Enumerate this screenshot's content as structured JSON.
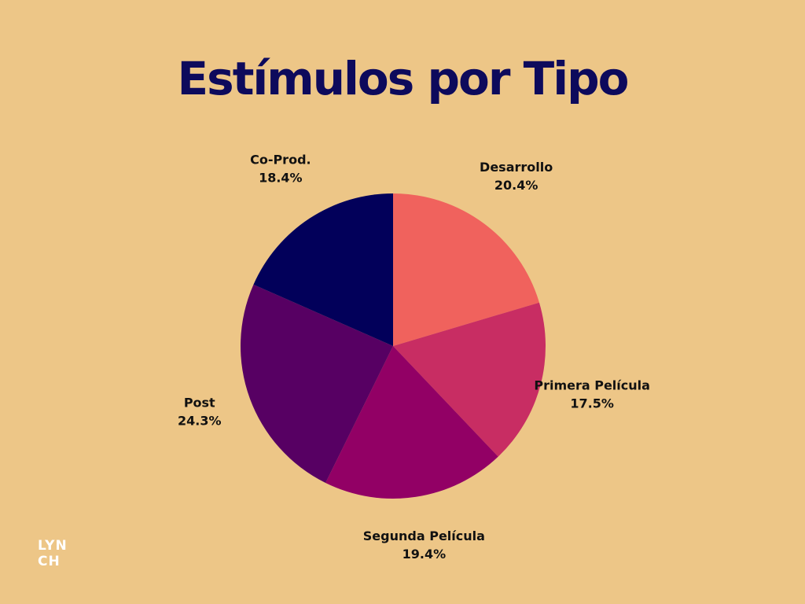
{
  "page": {
    "background": "#EDC687",
    "title_color": "#0D0A5C",
    "label_color": "#111111",
    "logo_color": "#FFFFFF"
  },
  "chart_data": {
    "type": "pie",
    "title": "Estímulos por Tipo",
    "slices": [
      {
        "label": "Desarrollo",
        "value": 20.4,
        "value_label": "20.4%",
        "color": "#F0625D"
      },
      {
        "label": "Primera Película",
        "value": 17.5,
        "value_label": "17.5%",
        "color": "#C82D63"
      },
      {
        "label": "Segunda Película",
        "value": 19.4,
        "value_label": "19.4%",
        "color": "#920065"
      },
      {
        "label": "Post",
        "value": 24.3,
        "value_label": "24.3%",
        "color": "#570063"
      },
      {
        "label": "Co-Prod.",
        "value": 18.4,
        "value_label": "18.4%",
        "color": "#02005A"
      }
    ],
    "start_angle_deg": 0,
    "direction": "clockwise",
    "legend": "none"
  },
  "logo": {
    "line1": "LYN",
    "line2": "CH"
  }
}
